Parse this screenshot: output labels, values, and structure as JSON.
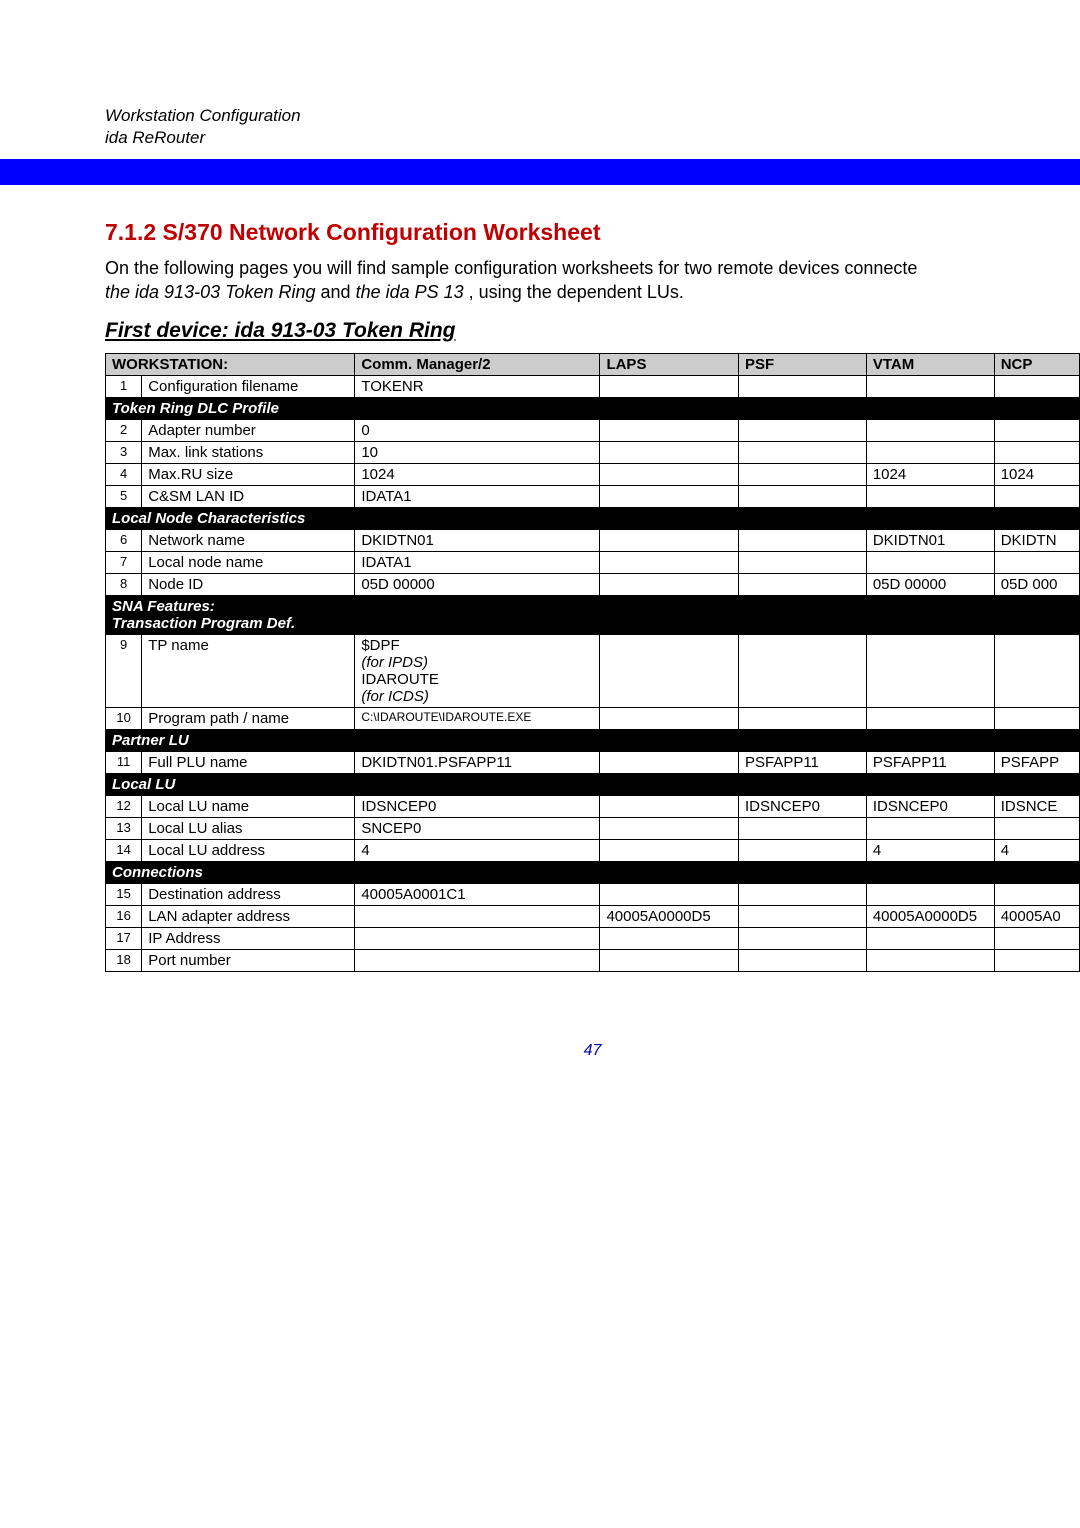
{
  "header": {
    "line1": "Workstation Configuration",
    "line2": "ida ReRouter"
  },
  "section_title": "7.1.2 S/370 Network Configuration Worksheet",
  "intro_plain1": "On the following pages you will find sample configuration worksheets for two remote devices connecte",
  "intro_ital1": "the ida 913-03 Token Ring",
  "intro_plain2": " and ",
  "intro_ital2": "the ida PS 13",
  "intro_plain3": ", using the dependent LUs.",
  "device_heading": "First device:  ida 913-03 Token Ring",
  "columns": {
    "workstation": "WORKSTATION:",
    "cm2": "Comm. Manager/2",
    "laps": "LAPS",
    "psf": "PSF",
    "vtam": "VTAM",
    "ncp": "NCP"
  },
  "sections": {
    "token_ring": "Token Ring DLC Profile",
    "local_node": "Local Node Characteristics",
    "sna_feat1": "SNA Features:",
    "sna_feat2": "Transaction Program Def.",
    "partner_lu": "Partner LU",
    "local_lu": "Local  LU",
    "connections": "Connections"
  },
  "rows": {
    "r1": {
      "n": "1",
      "label": "Configuration filename",
      "cm2": "TOKENR",
      "laps": "",
      "psf": "",
      "vtam": "",
      "ncp": ""
    },
    "r2": {
      "n": "2",
      "label": "Adapter number",
      "cm2": "0",
      "laps": "",
      "psf": "",
      "vtam": "",
      "ncp": ""
    },
    "r3": {
      "n": "3",
      "label": "Max. link stations",
      "cm2": "10",
      "laps": "",
      "psf": "",
      "vtam": "",
      "ncp": ""
    },
    "r4": {
      "n": "4",
      "label": "Max.RU size",
      "cm2": "1024",
      "laps": "",
      "psf": "",
      "vtam": "1024",
      "ncp": "1024"
    },
    "r5": {
      "n": "5",
      "label": "C&SM LAN ID",
      "cm2": "IDATA1",
      "laps": "",
      "psf": "",
      "vtam": "",
      "ncp": ""
    },
    "r6": {
      "n": "6",
      "label": "Network name",
      "cm2": "DKIDTN01",
      "laps": "",
      "psf": "",
      "vtam": "DKIDTN01",
      "ncp": "DKIDTN"
    },
    "r7": {
      "n": "7",
      "label": "Local node name",
      "cm2": "IDATA1",
      "laps": "",
      "psf": "",
      "vtam": "",
      "ncp": ""
    },
    "r8": {
      "n": "8",
      "label": "Node ID",
      "cm2": "05D 00000",
      "laps": "",
      "psf": "",
      "vtam": "05D 00000",
      "ncp": "05D 000"
    },
    "r9": {
      "n": "9",
      "label": "TP name",
      "cm2a": "$DPF ",
      "cm2a_i": "(for IPDS)",
      "cm2b": "IDAROUTE ",
      "cm2b_i": "(for ICDS)",
      "laps": "",
      "psf": "",
      "vtam": "",
      "ncp": ""
    },
    "r10": {
      "n": "10",
      "label": "Program path / name",
      "cm2": "C:\\IDAROUTE\\IDAROUTE.EXE",
      "laps": "",
      "psf": "",
      "vtam": "",
      "ncp": ""
    },
    "r11": {
      "n": "11",
      "label": "Full PLU name",
      "cm2": "DKIDTN01.PSFAPP11",
      "laps": "",
      "psf": "PSFAPP11",
      "vtam": "PSFAPP11",
      "ncp": "PSFAPP"
    },
    "r12": {
      "n": "12",
      "label": "Local LU name",
      "cm2": "IDSNCEP0",
      "laps": "",
      "psf": "IDSNCEP0",
      "vtam": "IDSNCEP0",
      "ncp": "IDSNCE"
    },
    "r13": {
      "n": "13",
      "label": "Local LU alias",
      "cm2": "SNCEP0",
      "laps": "",
      "psf": "",
      "vtam": "",
      "ncp": ""
    },
    "r14": {
      "n": "14",
      "label": "Local LU address",
      "cm2": "4",
      "laps": "",
      "psf": "",
      "vtam": "4",
      "ncp": "4"
    },
    "r15": {
      "n": "15",
      "label": "Destination address",
      "cm2": "40005A0001C1",
      "laps": "",
      "psf": "",
      "vtam": "",
      "ncp": ""
    },
    "r16": {
      "n": "16",
      "label": "LAN adapter address",
      "cm2": "",
      "laps": "40005A0000D5",
      "psf": "",
      "vtam": "40005A0000D5",
      "ncp": "40005A0"
    },
    "r17": {
      "n": "17",
      "label": "IP Address",
      "cm2": "",
      "laps": "",
      "psf": "",
      "vtam": "",
      "ncp": ""
    },
    "r18": {
      "n": "18",
      "label": "Port number",
      "cm2": "",
      "laps": "",
      "psf": "",
      "vtam": "",
      "ncp": ""
    }
  },
  "page_number": "47",
  "colors": {
    "section_title": "#c00000",
    "blue_bar": "#0000ff",
    "header_bg": "#cccccc",
    "section_row_bg": "#000000",
    "section_row_fg": "#ffffff",
    "page_num_color": "#0000b0"
  }
}
